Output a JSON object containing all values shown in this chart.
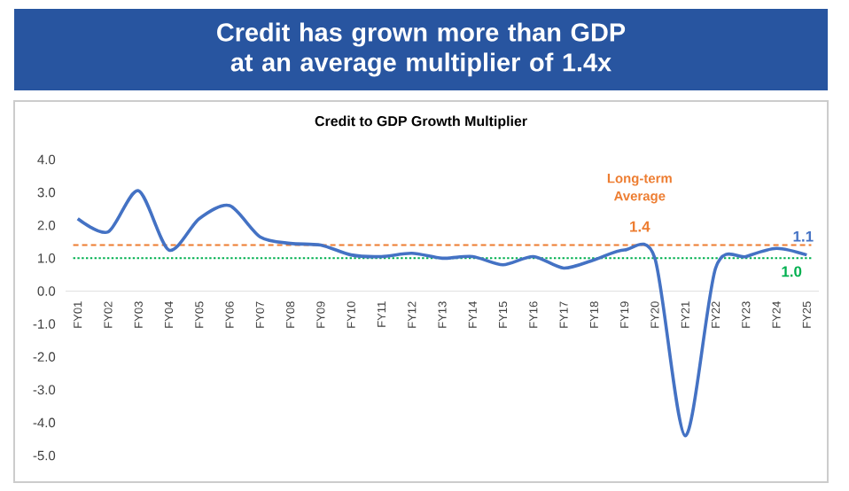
{
  "chart_data": {
    "type": "line",
    "title": "Credit has grown more than GDP at an average multiplier of 1.4x",
    "subtitle": "Credit to GDP Growth Multiplier",
    "categories": [
      "FY01",
      "FY02",
      "FY03",
      "FY04",
      "FY05",
      "FY06",
      "FY07",
      "FY08",
      "FY09",
      "FY10",
      "FY11",
      "FY12",
      "FY13",
      "FY14",
      "FY15",
      "FY16",
      "FY17",
      "FY18",
      "FY19",
      "FY20",
      "FY21",
      "FY22",
      "FY23",
      "FY24",
      "FY25"
    ],
    "series": [
      {
        "color": "#4472c4",
        "values": [
          2.2,
          1.8,
          3.05,
          1.25,
          2.2,
          2.6,
          1.65,
          1.45,
          1.4,
          1.1,
          1.05,
          1.15,
          1.0,
          1.05,
          0.8,
          1.05,
          0.7,
          0.95,
          1.25,
          1.0,
          -4.4,
          0.7,
          1.05,
          1.3,
          1.1
        ],
        "value_labels": [
          null,
          null,
          null,
          null,
          null,
          null,
          null,
          null,
          null,
          null,
          null,
          null,
          null,
          null,
          null,
          null,
          null,
          null,
          null,
          null,
          null,
          null,
          null,
          null,
          "1.1"
        ]
      }
    ],
    "ylim": [
      -5,
      4
    ],
    "yticks": [
      {
        "value": -5,
        "label": "-5.0"
      },
      {
        "value": -4,
        "label": "-4.0"
      },
      {
        "value": -3,
        "label": "-3.0"
      },
      {
        "value": -2,
        "label": "-2.0"
      },
      {
        "value": -1,
        "label": "-1.0"
      },
      {
        "value": 0,
        "label": "0.0"
      },
      {
        "value": 1,
        "label": "1.0"
      },
      {
        "value": 2,
        "label": "2.0"
      },
      {
        "value": 3,
        "label": "3.0"
      },
      {
        "value": 4,
        "label": "4.0"
      }
    ],
    "ref_lines": [
      {
        "axis": "y",
        "value": 1.4,
        "label": "1.4",
        "color": "#ed7d31",
        "line_style": "dashed"
      },
      {
        "axis": "y",
        "value": 1.0,
        "label": "1.0",
        "color": "#00b050",
        "line_style": "dotted"
      }
    ],
    "annotations": [
      "Long-term Average"
    ],
    "grid": false,
    "marker": "none",
    "line_style": "solid"
  }
}
